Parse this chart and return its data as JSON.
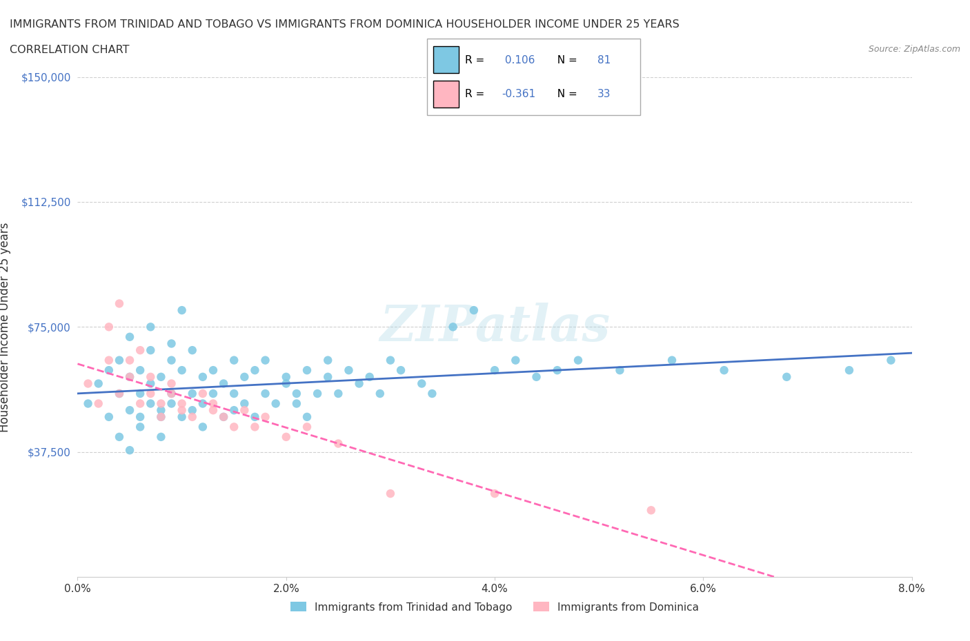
{
  "title_line1": "IMMIGRANTS FROM TRINIDAD AND TOBAGO VS IMMIGRANTS FROM DOMINICA HOUSEHOLDER INCOME UNDER 25 YEARS",
  "title_line2": "CORRELATION CHART",
  "source_text": "Source: ZipAtlas.com",
  "xlabel": "",
  "ylabel": "Householder Income Under 25 years",
  "xlim": [
    0.0,
    0.08
  ],
  "ylim": [
    0,
    150000
  ],
  "xtick_labels": [
    "0.0%",
    "2.0%",
    "4.0%",
    "6.0%",
    "8.0%"
  ],
  "xtick_vals": [
    0.0,
    0.02,
    0.04,
    0.06,
    0.08
  ],
  "ytick_labels": [
    "$37,500",
    "$75,000",
    "$112,500",
    "$150,000"
  ],
  "ytick_vals": [
    37500,
    75000,
    112500,
    150000
  ],
  "r_blue": 0.106,
  "n_blue": 81,
  "r_pink": -0.361,
  "n_pink": 33,
  "color_blue": "#7EC8E3",
  "color_pink": "#FFB6C1",
  "line_color_blue": "#4472C4",
  "line_color_pink": "#FF69B4",
  "watermark_text": "ZIPatlas",
  "legend_label_blue": "Immigrants from Trinidad and Tobago",
  "legend_label_pink": "Immigrants from Dominica",
  "blue_scatter_x": [
    0.001,
    0.002,
    0.003,
    0.003,
    0.004,
    0.004,
    0.004,
    0.005,
    0.005,
    0.005,
    0.005,
    0.006,
    0.006,
    0.006,
    0.006,
    0.007,
    0.007,
    0.007,
    0.007,
    0.008,
    0.008,
    0.008,
    0.008,
    0.009,
    0.009,
    0.009,
    0.009,
    0.01,
    0.01,
    0.01,
    0.011,
    0.011,
    0.011,
    0.012,
    0.012,
    0.012,
    0.013,
    0.013,
    0.014,
    0.014,
    0.015,
    0.015,
    0.015,
    0.016,
    0.016,
    0.017,
    0.017,
    0.018,
    0.018,
    0.019,
    0.02,
    0.02,
    0.021,
    0.021,
    0.022,
    0.022,
    0.023,
    0.024,
    0.024,
    0.025,
    0.026,
    0.027,
    0.028,
    0.029,
    0.03,
    0.031,
    0.033,
    0.034,
    0.036,
    0.038,
    0.04,
    0.042,
    0.044,
    0.046,
    0.048,
    0.052,
    0.057,
    0.062,
    0.068,
    0.074,
    0.078
  ],
  "blue_scatter_y": [
    52000,
    58000,
    48000,
    62000,
    55000,
    42000,
    65000,
    50000,
    60000,
    38000,
    72000,
    48000,
    55000,
    62000,
    45000,
    52000,
    68000,
    58000,
    75000,
    50000,
    48000,
    60000,
    42000,
    55000,
    65000,
    52000,
    70000,
    48000,
    62000,
    80000,
    55000,
    50000,
    68000,
    52000,
    60000,
    45000,
    55000,
    62000,
    48000,
    58000,
    65000,
    50000,
    55000,
    52000,
    60000,
    48000,
    62000,
    55000,
    65000,
    52000,
    58000,
    60000,
    55000,
    52000,
    62000,
    48000,
    55000,
    60000,
    65000,
    55000,
    62000,
    58000,
    60000,
    55000,
    65000,
    62000,
    58000,
    55000,
    75000,
    80000,
    62000,
    65000,
    60000,
    62000,
    65000,
    62000,
    65000,
    62000,
    60000,
    62000,
    65000
  ],
  "pink_scatter_x": [
    0.001,
    0.002,
    0.003,
    0.003,
    0.004,
    0.004,
    0.005,
    0.005,
    0.006,
    0.006,
    0.007,
    0.007,
    0.008,
    0.008,
    0.009,
    0.009,
    0.01,
    0.01,
    0.011,
    0.012,
    0.013,
    0.013,
    0.014,
    0.015,
    0.016,
    0.017,
    0.018,
    0.02,
    0.022,
    0.025,
    0.03,
    0.04,
    0.055
  ],
  "pink_scatter_y": [
    58000,
    52000,
    65000,
    75000,
    55000,
    82000,
    60000,
    65000,
    52000,
    68000,
    55000,
    60000,
    52000,
    48000,
    55000,
    58000,
    50000,
    52000,
    48000,
    55000,
    50000,
    52000,
    48000,
    45000,
    50000,
    45000,
    48000,
    42000,
    45000,
    40000,
    25000,
    25000,
    20000
  ]
}
